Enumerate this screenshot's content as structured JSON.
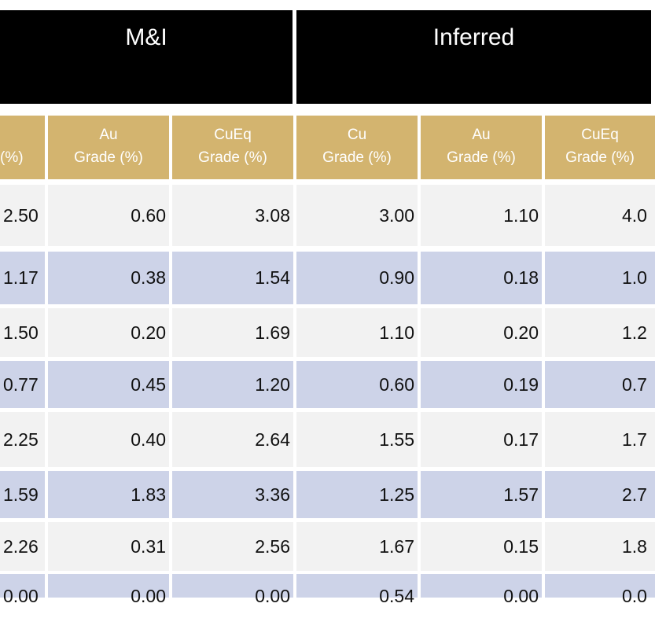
{
  "table": {
    "group_headers": [
      {
        "label": "M&I"
      },
      {
        "label": "Inferred"
      }
    ],
    "column_headers": [
      {
        "line1": "",
        "line2": "(%)"
      },
      {
        "line1": "Au",
        "line2": "Grade  (%)"
      },
      {
        "line1": "CuEq",
        "line2": "Grade (%)"
      },
      {
        "line1": "Cu",
        "line2": "Grade (%)"
      },
      {
        "line1": "Au",
        "line2": "Grade (%)"
      },
      {
        "line1": "CuEq",
        "line2": "Grade (%)"
      }
    ],
    "rows": [
      [
        "2.50",
        "0.60",
        "3.08",
        "3.00",
        "1.10",
        "4.0"
      ],
      [
        "1.17",
        "0.38",
        "1.54",
        "0.90",
        "0.18",
        "1.0"
      ],
      [
        "1.50",
        "0.20",
        "1.69",
        "1.10",
        "0.20",
        "1.2"
      ],
      [
        "0.77",
        "0.45",
        "1.20",
        "0.60",
        "0.19",
        "0.7"
      ],
      [
        "2.25",
        "0.40",
        "2.64",
        "1.55",
        "0.17",
        "1.7"
      ],
      [
        "1.59",
        "1.83",
        "3.36",
        "1.25",
        "1.57",
        "2.7"
      ],
      [
        "2.26",
        "0.31",
        "2.56",
        "1.67",
        "0.15",
        "1.8"
      ],
      [
        "0.00",
        "0.00",
        "0.00",
        "0.54",
        "0.00",
        "0.0"
      ]
    ],
    "colors": {
      "header_black": "#000000",
      "header_gold": "#d3b46f",
      "row_light": "#f2f2f2",
      "row_blue": "#cdd3e8"
    }
  }
}
